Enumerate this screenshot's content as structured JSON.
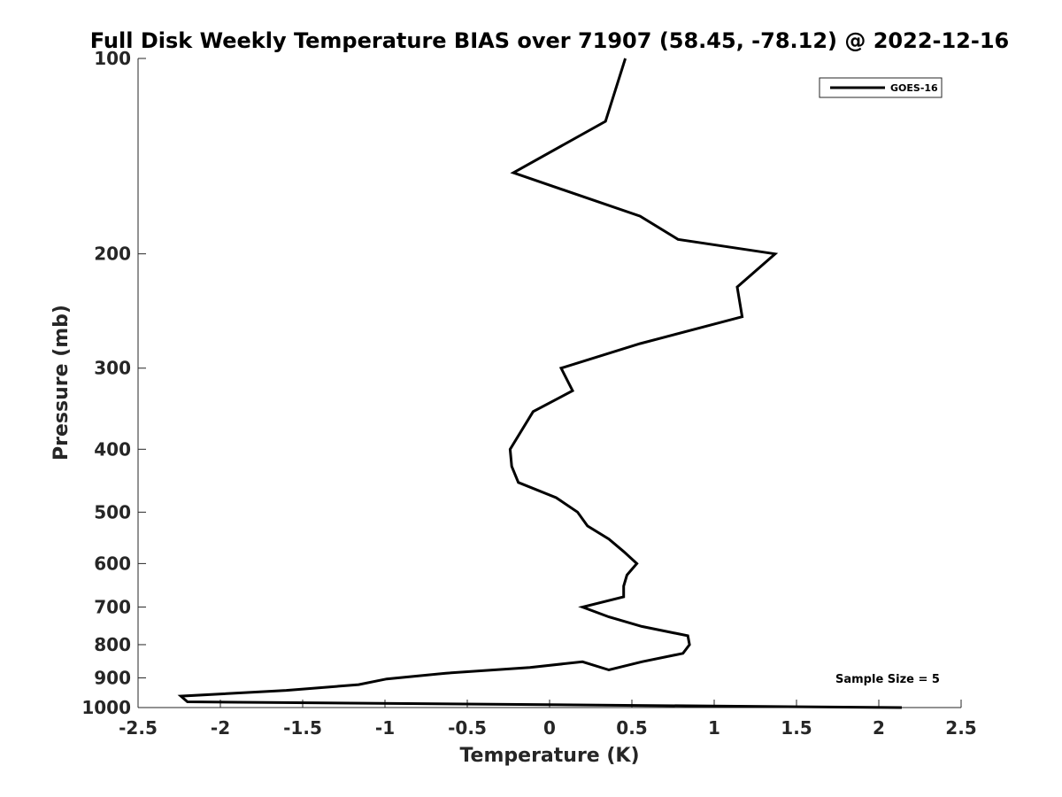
{
  "chart_data": {
    "type": "line",
    "title": "Full Disk Weekly Temperature BIAS over 71907 (58.45, -78.12) @ 2022-12-16",
    "xlabel": "Temperature (K)",
    "ylabel": "Pressure (mb)",
    "xlim": [
      -2.5,
      2.5
    ],
    "ylim": [
      100,
      1000
    ],
    "y_scale": "log",
    "y_reversed": true,
    "x_ticks": [
      -2.5,
      -2,
      -1.5,
      -1,
      -0.5,
      0,
      0.5,
      1,
      1.5,
      2,
      2.5
    ],
    "x_tick_labels": [
      "-2.5",
      "-2",
      "-1.5",
      "-1",
      "-0.5",
      "0",
      "0.5",
      "1",
      "1.5",
      "2",
      "2.5"
    ],
    "y_ticks": [
      100,
      200,
      300,
      400,
      500,
      600,
      700,
      800,
      900,
      1000
    ],
    "y_tick_labels": [
      "100",
      "200",
      "300",
      "400",
      "500",
      "600",
      "700",
      "800",
      "900",
      "1000"
    ],
    "grid": false,
    "legend_position": "top-right",
    "series": [
      {
        "name": "GOES-16",
        "color": "#000000",
        "points": [
          [
            0.46,
            100
          ],
          [
            0.34,
            125
          ],
          [
            -0.22,
            150
          ],
          [
            0.55,
            175
          ],
          [
            0.78,
            190
          ],
          [
            1.37,
            200
          ],
          [
            1.14,
            225
          ],
          [
            1.17,
            250
          ],
          [
            0.55,
            275
          ],
          [
            0.07,
            300
          ],
          [
            0.14,
            325
          ],
          [
            -0.1,
            350
          ],
          [
            -0.24,
            400
          ],
          [
            -0.23,
            425
          ],
          [
            -0.19,
            450
          ],
          [
            0.04,
            475
          ],
          [
            0.17,
            500
          ],
          [
            0.23,
            525
          ],
          [
            0.36,
            550
          ],
          [
            0.45,
            575
          ],
          [
            0.53,
            600
          ],
          [
            0.47,
            625
          ],
          [
            0.45,
            650
          ],
          [
            0.45,
            675
          ],
          [
            0.2,
            700
          ],
          [
            0.36,
            725
          ],
          [
            0.56,
            750
          ],
          [
            0.84,
            775
          ],
          [
            0.85,
            800
          ],
          [
            0.81,
            825
          ],
          [
            0.56,
            850
          ],
          [
            0.36,
            875
          ],
          [
            0.2,
            900
          ],
          [
            -0.12,
            925
          ],
          [
            -0.63,
            950
          ],
          [
            -0.99,
            975
          ],
          [
            -1.16,
            1000
          ],
          [
            -1.6,
            1025
          ],
          [
            -2.24,
            1050
          ],
          [
            -2.2,
            1075
          ],
          [
            2.14,
            1100
          ]
        ]
      }
    ],
    "annotations": [
      {
        "text": "Sample Size = 5",
        "x": 2.1,
        "y": 900
      }
    ]
  }
}
